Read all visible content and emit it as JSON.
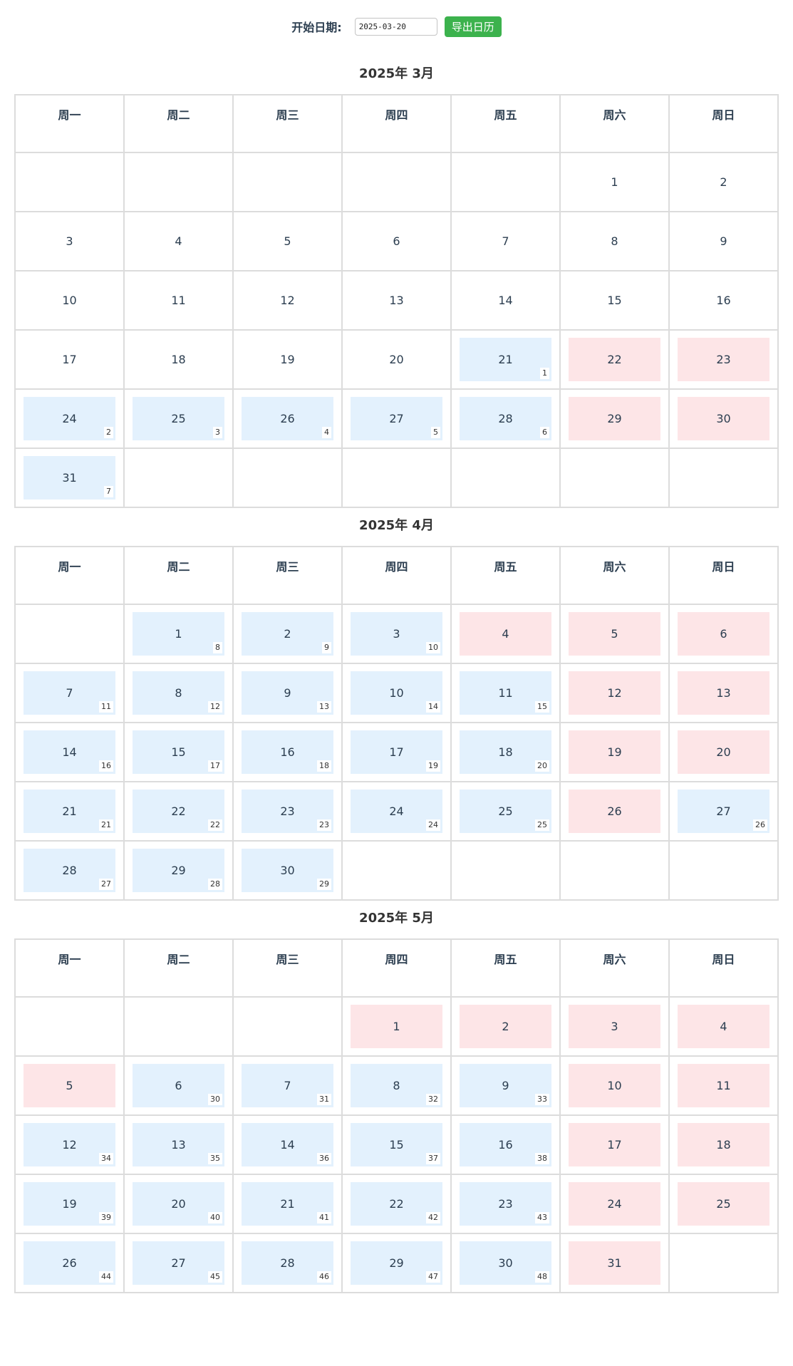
{
  "toolbar": {
    "label": "开始日期:",
    "date_value": "2025-03-20",
    "export_label": "导出日历"
  },
  "weekdays": [
    "周一",
    "周二",
    "周三",
    "周四",
    "周五",
    "周六",
    "周日"
  ],
  "months": [
    {
      "title": "2025年 3月",
      "weeks": [
        [
          null,
          null,
          null,
          null,
          null,
          {
            "d": "1"
          },
          {
            "d": "2"
          }
        ],
        [
          {
            "d": "3"
          },
          {
            "d": "4"
          },
          {
            "d": "5"
          },
          {
            "d": "6"
          },
          {
            "d": "7"
          },
          {
            "d": "8"
          },
          {
            "d": "9"
          }
        ],
        [
          {
            "d": "10"
          },
          {
            "d": "11"
          },
          {
            "d": "12"
          },
          {
            "d": "13"
          },
          {
            "d": "14"
          },
          {
            "d": "15"
          },
          {
            "d": "16"
          }
        ],
        [
          {
            "d": "17"
          },
          {
            "d": "18"
          },
          {
            "d": "19"
          },
          {
            "d": "20"
          },
          {
            "d": "21",
            "t": "w",
            "n": "1"
          },
          {
            "d": "22",
            "t": "h"
          },
          {
            "d": "23",
            "t": "h"
          }
        ],
        [
          {
            "d": "24",
            "t": "w",
            "n": "2"
          },
          {
            "d": "25",
            "t": "w",
            "n": "3"
          },
          {
            "d": "26",
            "t": "w",
            "n": "4"
          },
          {
            "d": "27",
            "t": "w",
            "n": "5"
          },
          {
            "d": "28",
            "t": "w",
            "n": "6"
          },
          {
            "d": "29",
            "t": "h"
          },
          {
            "d": "30",
            "t": "h"
          }
        ],
        [
          {
            "d": "31",
            "t": "w",
            "n": "7"
          },
          null,
          null,
          null,
          null,
          null,
          null
        ]
      ]
    },
    {
      "title": "2025年 4月",
      "weeks": [
        [
          null,
          {
            "d": "1",
            "t": "w",
            "n": "8"
          },
          {
            "d": "2",
            "t": "w",
            "n": "9"
          },
          {
            "d": "3",
            "t": "w",
            "n": "10"
          },
          {
            "d": "4",
            "t": "h"
          },
          {
            "d": "5",
            "t": "h"
          },
          {
            "d": "6",
            "t": "h"
          }
        ],
        [
          {
            "d": "7",
            "t": "w",
            "n": "11"
          },
          {
            "d": "8",
            "t": "w",
            "n": "12"
          },
          {
            "d": "9",
            "t": "w",
            "n": "13"
          },
          {
            "d": "10",
            "t": "w",
            "n": "14"
          },
          {
            "d": "11",
            "t": "w",
            "n": "15"
          },
          {
            "d": "12",
            "t": "h"
          },
          {
            "d": "13",
            "t": "h"
          }
        ],
        [
          {
            "d": "14",
            "t": "w",
            "n": "16"
          },
          {
            "d": "15",
            "t": "w",
            "n": "17"
          },
          {
            "d": "16",
            "t": "w",
            "n": "18"
          },
          {
            "d": "17",
            "t": "w",
            "n": "19"
          },
          {
            "d": "18",
            "t": "w",
            "n": "20"
          },
          {
            "d": "19",
            "t": "h"
          },
          {
            "d": "20",
            "t": "h"
          }
        ],
        [
          {
            "d": "21",
            "t": "w",
            "n": "21"
          },
          {
            "d": "22",
            "t": "w",
            "n": "22"
          },
          {
            "d": "23",
            "t": "w",
            "n": "23"
          },
          {
            "d": "24",
            "t": "w",
            "n": "24"
          },
          {
            "d": "25",
            "t": "w",
            "n": "25"
          },
          {
            "d": "26",
            "t": "h"
          },
          {
            "d": "27",
            "t": "w",
            "n": "26"
          }
        ],
        [
          {
            "d": "28",
            "t": "w",
            "n": "27"
          },
          {
            "d": "29",
            "t": "w",
            "n": "28"
          },
          {
            "d": "30",
            "t": "w",
            "n": "29"
          },
          null,
          null,
          null,
          null
        ]
      ]
    },
    {
      "title": "2025年 5月",
      "weeks": [
        [
          null,
          null,
          null,
          {
            "d": "1",
            "t": "h"
          },
          {
            "d": "2",
            "t": "h"
          },
          {
            "d": "3",
            "t": "h"
          },
          {
            "d": "4",
            "t": "h"
          }
        ],
        [
          {
            "d": "5",
            "t": "h"
          },
          {
            "d": "6",
            "t": "w",
            "n": "30"
          },
          {
            "d": "7",
            "t": "w",
            "n": "31"
          },
          {
            "d": "8",
            "t": "w",
            "n": "32"
          },
          {
            "d": "9",
            "t": "w",
            "n": "33"
          },
          {
            "d": "10",
            "t": "h"
          },
          {
            "d": "11",
            "t": "h"
          }
        ],
        [
          {
            "d": "12",
            "t": "w",
            "n": "34"
          },
          {
            "d": "13",
            "t": "w",
            "n": "35"
          },
          {
            "d": "14",
            "t": "w",
            "n": "36"
          },
          {
            "d": "15",
            "t": "w",
            "n": "37"
          },
          {
            "d": "16",
            "t": "w",
            "n": "38"
          },
          {
            "d": "17",
            "t": "h"
          },
          {
            "d": "18",
            "t": "h"
          }
        ],
        [
          {
            "d": "19",
            "t": "w",
            "n": "39"
          },
          {
            "d": "20",
            "t": "w",
            "n": "40"
          },
          {
            "d": "21",
            "t": "w",
            "n": "41"
          },
          {
            "d": "22",
            "t": "w",
            "n": "42"
          },
          {
            "d": "23",
            "t": "w",
            "n": "43"
          },
          {
            "d": "24",
            "t": "h"
          },
          {
            "d": "25",
            "t": "h"
          }
        ],
        [
          {
            "d": "26",
            "t": "w",
            "n": "44"
          },
          {
            "d": "27",
            "t": "w",
            "n": "45"
          },
          {
            "d": "28",
            "t": "w",
            "n": "46"
          },
          {
            "d": "29",
            "t": "w",
            "n": "47"
          },
          {
            "d": "30",
            "t": "w",
            "n": "48"
          },
          {
            "d": "31",
            "t": "h"
          },
          null
        ]
      ]
    }
  ],
  "colors": {
    "workday_bg": "#e3f1fd",
    "holiday_bg": "#fde5e7",
    "export_button": "#3cb24d"
  }
}
